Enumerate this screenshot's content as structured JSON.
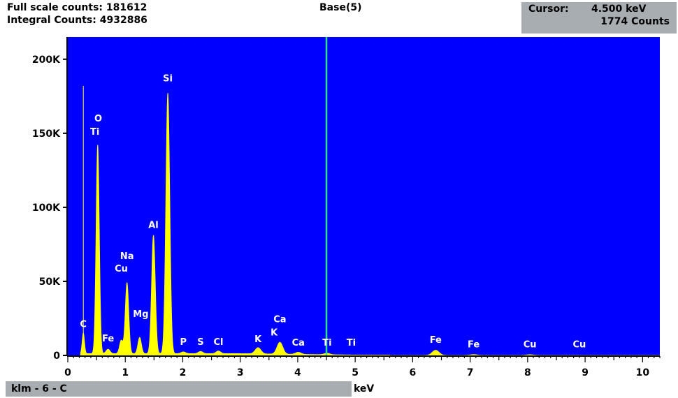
{
  "header": {
    "full_scale_label": "Full scale counts: 181612",
    "integral_label": "Integral Counts: 4932886",
    "title": "Base(5)",
    "cursor_label": "Cursor:",
    "cursor_energy": "4.500 keV",
    "cursor_counts": "1774 Counts"
  },
  "footer": {
    "sample_label": "klm - 6 - C",
    "x_unit": "keV"
  },
  "colors": {
    "plot_bg": "#0000ff",
    "spectrum": "#ffff00",
    "cursor_line": "#2ee08a",
    "label": "#ffffff",
    "panel": "#a8adb2"
  },
  "chart_data": {
    "type": "line",
    "title": "Base(5)",
    "xlabel": "keV",
    "ylabel": "",
    "xlim": [
      0,
      10.3
    ],
    "ylim": [
      0,
      215000
    ],
    "x_ticks": [
      0,
      1,
      2,
      3,
      4,
      5,
      6,
      7,
      8,
      9,
      10
    ],
    "y_ticks": [
      0,
      50000,
      100000,
      150000,
      200000
    ],
    "y_tick_labels": [
      "0",
      "50K",
      "100K",
      "150K",
      "200K"
    ],
    "cursor_x": 4.5,
    "background_level": 1200,
    "series": [
      {
        "peaks": [
          {
            "x": 0.27,
            "y": 14000,
            "w": 0.02
          },
          {
            "x": 0.52,
            "y": 141000,
            "w": 0.028
          },
          {
            "x": 0.7,
            "y": 3000,
            "w": 0.035
          },
          {
            "x": 0.93,
            "y": 9000,
            "w": 0.03
          },
          {
            "x": 1.03,
            "y": 48000,
            "w": 0.03
          },
          {
            "x": 1.25,
            "y": 11000,
            "w": 0.03
          },
          {
            "x": 1.49,
            "y": 80000,
            "w": 0.032
          },
          {
            "x": 1.74,
            "y": 176000,
            "w": 0.034
          },
          {
            "x": 2.01,
            "y": 1200,
            "w": 0.04
          },
          {
            "x": 2.31,
            "y": 1500,
            "w": 0.04
          },
          {
            "x": 2.62,
            "y": 1800,
            "w": 0.04
          },
          {
            "x": 3.31,
            "y": 4200,
            "w": 0.05
          },
          {
            "x": 3.69,
            "y": 8000,
            "w": 0.05
          },
          {
            "x": 4.01,
            "y": 1400,
            "w": 0.05
          },
          {
            "x": 4.51,
            "y": 1000,
            "w": 0.05
          },
          {
            "x": 6.4,
            "y": 3500,
            "w": 0.06
          },
          {
            "x": 7.06,
            "y": 600,
            "w": 0.06
          },
          {
            "x": 8.04,
            "y": 500,
            "w": 0.06
          }
        ]
      }
    ],
    "element_labels": [
      {
        "text": "C",
        "x": 0.27,
        "y": 19000
      },
      {
        "text": "O",
        "x": 0.53,
        "y": 158000
      },
      {
        "text": "Ti",
        "x": 0.47,
        "y": 149000
      },
      {
        "text": "Si",
        "x": 1.74,
        "y": 185000
      },
      {
        "text": "Al",
        "x": 1.49,
        "y": 86000
      },
      {
        "text": "Na",
        "x": 1.03,
        "y": 65000
      },
      {
        "text": "Cu",
        "x": 0.93,
        "y": 56500
      },
      {
        "text": "Mg",
        "x": 1.27,
        "y": 26000
      },
      {
        "text": "Fe",
        "x": 0.7,
        "y": 9500
      },
      {
        "text": "P",
        "x": 2.01,
        "y": 7000
      },
      {
        "text": "S",
        "x": 2.31,
        "y": 7000
      },
      {
        "text": "Cl",
        "x": 2.62,
        "y": 7000
      },
      {
        "text": "K",
        "x": 3.31,
        "y": 9000
      },
      {
        "text": "Ca",
        "x": 3.69,
        "y": 22500
      },
      {
        "text": "K",
        "x": 3.59,
        "y": 13500
      },
      {
        "text": "Ca",
        "x": 4.01,
        "y": 6500
      },
      {
        "text": "Ti",
        "x": 4.51,
        "y": 6500
      },
      {
        "text": "Ti",
        "x": 4.93,
        "y": 6500
      },
      {
        "text": "Fe",
        "x": 6.4,
        "y": 8500
      },
      {
        "text": "Fe",
        "x": 7.06,
        "y": 5500
      },
      {
        "text": "Cu",
        "x": 8.04,
        "y": 5500
      },
      {
        "text": "Cu",
        "x": 8.9,
        "y": 5500
      }
    ]
  }
}
